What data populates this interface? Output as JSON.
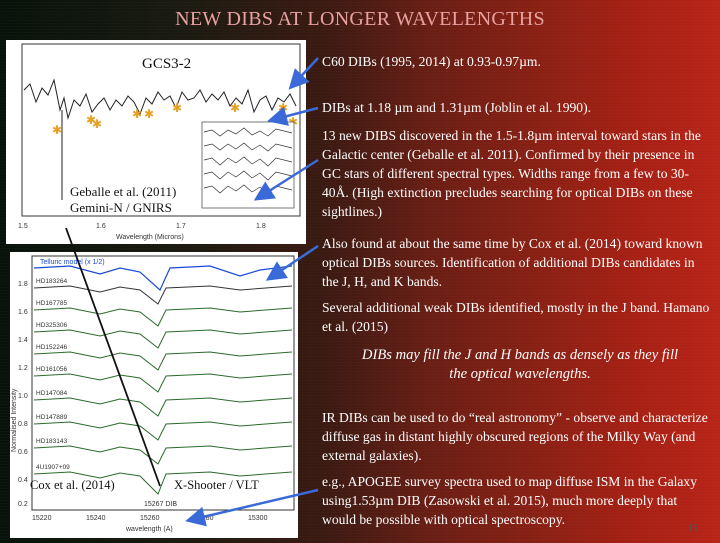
{
  "slide": {
    "title": "NEW DIBS AT LONGER WAVELENGTHS",
    "page_number": "15"
  },
  "top_figure": {
    "panel_label": "GCS3-2",
    "credit_line1": "Geballe et al. (2011)",
    "credit_line2": "Gemini-N / GNIRS",
    "x_ticks": [
      "1.5",
      "1.6",
      "1.7",
      "1.8"
    ],
    "x_axis_label": "Wavelength (Microns)",
    "accent_colors": {
      "asterisk": "#e8a020",
      "spectrum": "#222222"
    }
  },
  "bottom_figure": {
    "credit_left": "Cox et al. (2014)",
    "credit_right": "X-Shooter / VLT",
    "telluric_label": "Telluric model (x 1/2)",
    "star_labels": [
      "HD183264",
      "HD167785",
      "HD325306",
      "HD152246",
      "HD161056",
      "HD147084",
      "HD147889",
      "HD183143",
      "4U1907+09"
    ],
    "left_ticks": [
      "1.8",
      "1.6",
      "1.4",
      "1.2",
      "1.0",
      "0.8",
      "0.6",
      "0.4",
      "0.2"
    ],
    "dib_label": "15267 DIB",
    "x_ticks": [
      "15220",
      "15240",
      "15260",
      "15280",
      "15300"
    ],
    "x_axis_label": "wavelength (A)",
    "y_axis_label": "Normalised Intensity",
    "accent_colors": {
      "telluric": "#1a4ad0",
      "spectra": "#2a6a2a"
    }
  },
  "bullets": {
    "c60": "C60 DIBs (1995, 2014) at 0.93-0.97µm.",
    "joblin": "DIBs at 1.18 µm and 1.31µm (Joblin et al. 1990).",
    "geballe": "13 new DIBS discovered in the 1.5-1.8µm interval toward stars in the Galactic center (Geballe et al. 2011). Confirmed by their presence in GC stars of different spectral types. Widths range from a few to 30-40Å. (High extinction precludes searching for optical DIBs on these sightlines.)",
    "cox": "Also found at about the same time by Cox et al. (2014) toward known optical DIBs sources. Identification of additional DIBs candidates in the J, H, and K bands.",
    "hamano": "Several additional weak DIBs identified, mostly in the J band. Hamano et al. (2015)",
    "emphasis": "DIBs may fill the J and H bands as densely as they fill the optical wavelengths.",
    "real_astronomy": "IR DIBs can be used to do “real astronomy” - observe and characterize diffuse gas in distant highly obscured regions of the Milky Way (and external galaxies).",
    "apogee": "e.g., APOGEE survey spectra used to map diffuse ISM in the Galaxy using1.53µm DIB (Zasowski et al. 2015), much more deeply that would be possible with optical spectroscopy."
  },
  "colors": {
    "title": "#e8a0a0",
    "arrow": "#3a6ad8"
  }
}
